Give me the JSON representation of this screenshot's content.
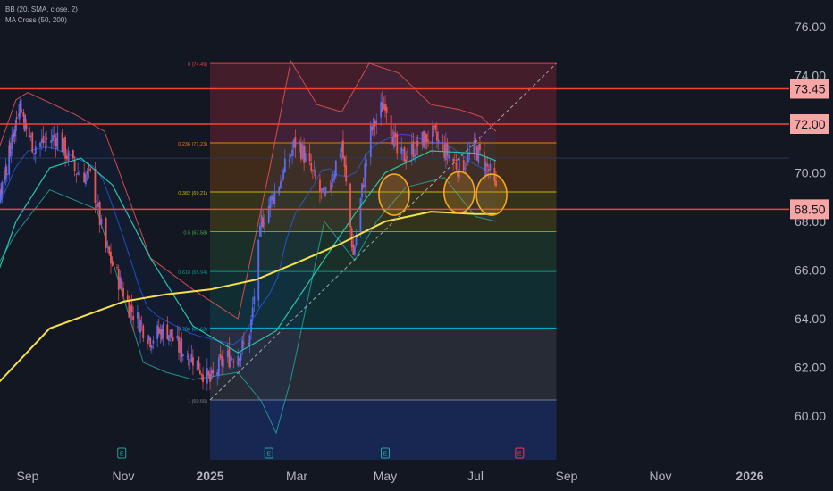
{
  "indicators": [
    "BB (20, SMA, close, 2)",
    "MA Cross (50, 200)"
  ],
  "colors": {
    "background": "#131722",
    "up": "#5b6cf0",
    "down": "#ef5350",
    "ma50": "#26c6a6",
    "ma200": "#f5e04a",
    "bb_upper": "#ef5350",
    "bb_lower": "#26a69a",
    "bb_basis": "#2962ff",
    "hline": "#f44336",
    "hline_label_bg": "#f8a5a5",
    "circle": "#f5a623",
    "text": "#b2b5be"
  },
  "chart_data": {
    "type": "candlestick",
    "y_axis": {
      "range": [
        59.2,
        77.0
      ],
      "ticks": [
        "76.00",
        "74.00",
        "72.00",
        "70.00",
        "68.00",
        "66.00",
        "64.00",
        "62.00",
        "60.00"
      ]
    },
    "x_axis": {
      "ticks": [
        {
          "label": "Sep",
          "date": "2024-09-01",
          "bold": false
        },
        {
          "label": "Nov",
          "date": "2024-11-01",
          "bold": false
        },
        {
          "label": "2025",
          "date": "2025-01-01",
          "bold": true
        },
        {
          "label": "Mar",
          "date": "2025-03-01",
          "bold": false
        },
        {
          "label": "May",
          "date": "2025-05-01",
          "bold": false
        },
        {
          "label": "Jul",
          "date": "2025-07-01",
          "bold": false
        },
        {
          "label": "Sep",
          "date": "2025-09-01",
          "bold": false
        },
        {
          "label": "Nov",
          "date": "2025-11-01",
          "bold": false
        },
        {
          "label": "2026",
          "date": "2026-01-01",
          "bold": true
        }
      ]
    },
    "price_path": [
      [
        "2024-07-15",
        68.3
      ],
      [
        "2024-08-10",
        71.3
      ],
      [
        "2024-08-20",
        72.9
      ],
      [
        "2024-08-27",
        72.2
      ],
      [
        "2024-09-05",
        71.1
      ],
      [
        "2024-09-20",
        71.5
      ],
      [
        "2024-10-01",
        70.1
      ],
      [
        "2024-10-12",
        69.8
      ],
      [
        "2024-10-20",
        67.0
      ],
      [
        "2024-11-05",
        64.5
      ],
      [
        "2024-11-20",
        63.2
      ],
      [
        "2024-12-01",
        63.6
      ],
      [
        "2024-12-10",
        62.8
      ],
      [
        "2024-12-20",
        62.4
      ],
      [
        "2025-01-01",
        61.4
      ],
      [
        "2025-01-10",
        62.3
      ],
      [
        "2025-01-20",
        62.6
      ],
      [
        "2025-01-28",
        63.2
      ],
      [
        "2025-02-05",
        68.0
      ],
      [
        "2025-02-20",
        70.0
      ],
      [
        "2025-03-01",
        71.4
      ],
      [
        "2025-03-20",
        68.8
      ],
      [
        "2025-04-01",
        71.2
      ],
      [
        "2025-04-09",
        66.6
      ],
      [
        "2025-04-20",
        71.5
      ],
      [
        "2025-05-01",
        73.0
      ],
      [
        "2025-05-10",
        70.5
      ],
      [
        "2025-05-20",
        71.0
      ],
      [
        "2025-06-01",
        71.6
      ],
      [
        "2025-06-20",
        70.2
      ],
      [
        "2025-07-01",
        71.0
      ],
      [
        "2025-07-10",
        70.1
      ],
      [
        "2025-07-15",
        69.2
      ]
    ],
    "moving_averages": [
      {
        "name": "MA 50",
        "points": [
          [
            "2024-07-15",
            65.5
          ],
          [
            "2024-08-15",
            68.0
          ],
          [
            "2024-09-15",
            70.2
          ],
          [
            "2024-10-05",
            70.6
          ],
          [
            "2024-10-25",
            69.5
          ],
          [
            "2024-11-20",
            66.5
          ],
          [
            "2024-12-20",
            63.7
          ],
          [
            "2025-01-20",
            62.6
          ],
          [
            "2025-02-15",
            63.5
          ],
          [
            "2025-03-15",
            66.0
          ],
          [
            "2025-04-10",
            68.3
          ],
          [
            "2025-05-01",
            70.0
          ],
          [
            "2025-06-01",
            70.9
          ],
          [
            "2025-07-01",
            70.8
          ],
          [
            "2025-07-15",
            70.5
          ]
        ]
      },
      {
        "name": "MA 200",
        "points": [
          [
            "2024-07-15",
            61.2
          ],
          [
            "2024-09-15",
            63.6
          ],
          [
            "2024-11-01",
            64.7
          ],
          [
            "2024-12-01",
            65.0
          ],
          [
            "2025-01-01",
            65.2
          ],
          [
            "2025-02-01",
            65.6
          ],
          [
            "2025-03-01",
            66.3
          ],
          [
            "2025-04-01",
            67.1
          ],
          [
            "2025-05-01",
            68.0
          ],
          [
            "2025-06-01",
            68.4
          ],
          [
            "2025-07-01",
            68.3
          ],
          [
            "2025-07-15",
            68.3
          ]
        ]
      }
    ],
    "bollinger": {
      "upper": [
        [
          "2024-07-15",
          70.5
        ],
        [
          "2024-08-15",
          73.0
        ],
        [
          "2024-09-01",
          73.3
        ],
        [
          "2024-10-01",
          72.4
        ],
        [
          "2024-10-20",
          71.7
        ],
        [
          "2024-11-20",
          66.5
        ],
        [
          "2024-12-20",
          65.2
        ],
        [
          "2025-01-20",
          64.0
        ],
        [
          "2025-02-10",
          70.0
        ],
        [
          "2025-02-25",
          74.6
        ],
        [
          "2025-03-15",
          72.8
        ],
        [
          "2025-04-01",
          72.5
        ],
        [
          "2025-04-20",
          74.5
        ],
        [
          "2025-05-10",
          74.1
        ],
        [
          "2025-06-01",
          72.8
        ],
        [
          "2025-06-20",
          72.6
        ],
        [
          "2025-07-05",
          72.3
        ],
        [
          "2025-07-15",
          71.7
        ]
      ],
      "lower": [
        [
          "2024-07-15",
          66.0
        ],
        [
          "2024-08-15",
          67.5
        ],
        [
          "2024-09-15",
          69.3
        ],
        [
          "2024-10-15",
          68.5
        ],
        [
          "2024-11-15",
          62.2
        ],
        [
          "2024-12-01",
          61.8
        ],
        [
          "2024-12-20",
          61.5
        ],
        [
          "2025-01-20",
          61.8
        ],
        [
          "2025-02-05",
          60.6
        ],
        [
          "2025-02-15",
          59.3
        ],
        [
          "2025-02-25",
          61.5
        ],
        [
          "2025-03-20",
          68.0
        ],
        [
          "2025-04-10",
          66.4
        ],
        [
          "2025-04-25",
          68.0
        ],
        [
          "2025-05-15",
          69.4
        ],
        [
          "2025-06-10",
          69.8
        ],
        [
          "2025-07-01",
          68.2
        ],
        [
          "2025-07-15",
          68.0
        ]
      ]
    },
    "fibonacci": {
      "start": "2025-01-01",
      "end": "2025-08-25",
      "levels": [
        {
          "label": "0 (74.49)",
          "ratio": 0,
          "price": 74.49,
          "color": "#f23645"
        },
        {
          "label": "0.236 (71.23)",
          "ratio": 0.236,
          "price": 71.23,
          "color": "#f57c00"
        },
        {
          "label": "0.382 (69.21)",
          "ratio": 0.382,
          "price": 69.21,
          "color": "#c8b400"
        },
        {
          "label": "0.5 (67.58)",
          "ratio": 0.5,
          "price": 67.58,
          "color": "#4caf50"
        },
        {
          "label": "0.618 (65.94)",
          "ratio": 0.618,
          "price": 65.94,
          "color": "#089981"
        },
        {
          "label": "0.786 (63.62)",
          "ratio": 0.786,
          "price": 63.62,
          "color": "#00bcd4"
        },
        {
          "label": "1 (60.66)",
          "ratio": 1,
          "price": 60.66,
          "color": "#787b86"
        }
      ]
    },
    "trendline": {
      "from": [
        "2025-01-01",
        60.66
      ],
      "to": [
        "2025-08-25",
        74.49
      ]
    },
    "horizontal_lines": [
      {
        "price": 73.45,
        "label": "73.45"
      },
      {
        "price": 72.0,
        "label": "72.00"
      },
      {
        "price": 68.5,
        "label": "68.50"
      }
    ],
    "highlight_circles": [
      {
        "date": "2025-05-07",
        "price": 69.1
      },
      {
        "date": "2025-06-20",
        "price": 69.2
      },
      {
        "date": "2025-07-12",
        "price": 69.1
      }
    ],
    "current_price": 70.6,
    "event_markers": [
      {
        "date": "2024-10-31",
        "letter": "E",
        "kind": "earnings-past"
      },
      {
        "date": "2025-02-10",
        "letter": "E",
        "kind": "earnings-past"
      },
      {
        "date": "2025-05-01",
        "letter": "E",
        "kind": "earnings-past"
      },
      {
        "date": "2025-07-31",
        "letter": "E",
        "kind": "earnings-upcoming"
      }
    ]
  }
}
